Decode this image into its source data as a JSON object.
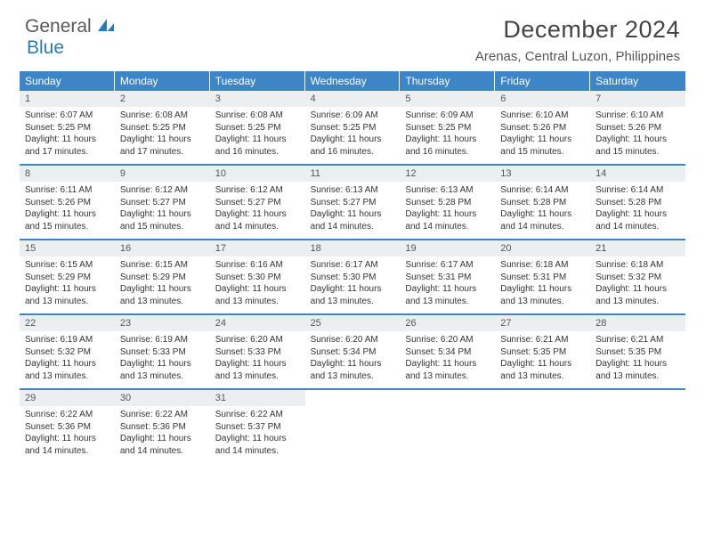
{
  "logo": {
    "text1": "General",
    "text2": "Blue"
  },
  "title": "December 2024",
  "location": "Arenas, Central Luzon, Philippines",
  "colors": {
    "header_bg": "#3d85c6",
    "header_text": "#ffffff",
    "daynum_bg": "#eceff1",
    "week_border": "#3d85c6",
    "logo_gray": "#595959",
    "logo_blue": "#2a7ab8"
  },
  "day_names": [
    "Sunday",
    "Monday",
    "Tuesday",
    "Wednesday",
    "Thursday",
    "Friday",
    "Saturday"
  ],
  "weeks": [
    [
      {
        "n": "1",
        "sr": "6:07 AM",
        "ss": "5:25 PM",
        "dh": "11",
        "dm": "17"
      },
      {
        "n": "2",
        "sr": "6:08 AM",
        "ss": "5:25 PM",
        "dh": "11",
        "dm": "17"
      },
      {
        "n": "3",
        "sr": "6:08 AM",
        "ss": "5:25 PM",
        "dh": "11",
        "dm": "16"
      },
      {
        "n": "4",
        "sr": "6:09 AM",
        "ss": "5:25 PM",
        "dh": "11",
        "dm": "16"
      },
      {
        "n": "5",
        "sr": "6:09 AM",
        "ss": "5:25 PM",
        "dh": "11",
        "dm": "16"
      },
      {
        "n": "6",
        "sr": "6:10 AM",
        "ss": "5:26 PM",
        "dh": "11",
        "dm": "15"
      },
      {
        "n": "7",
        "sr": "6:10 AM",
        "ss": "5:26 PM",
        "dh": "11",
        "dm": "15"
      }
    ],
    [
      {
        "n": "8",
        "sr": "6:11 AM",
        "ss": "5:26 PM",
        "dh": "11",
        "dm": "15"
      },
      {
        "n": "9",
        "sr": "6:12 AM",
        "ss": "5:27 PM",
        "dh": "11",
        "dm": "15"
      },
      {
        "n": "10",
        "sr": "6:12 AM",
        "ss": "5:27 PM",
        "dh": "11",
        "dm": "14"
      },
      {
        "n": "11",
        "sr": "6:13 AM",
        "ss": "5:27 PM",
        "dh": "11",
        "dm": "14"
      },
      {
        "n": "12",
        "sr": "6:13 AM",
        "ss": "5:28 PM",
        "dh": "11",
        "dm": "14"
      },
      {
        "n": "13",
        "sr": "6:14 AM",
        "ss": "5:28 PM",
        "dh": "11",
        "dm": "14"
      },
      {
        "n": "14",
        "sr": "6:14 AM",
        "ss": "5:28 PM",
        "dh": "11",
        "dm": "14"
      }
    ],
    [
      {
        "n": "15",
        "sr": "6:15 AM",
        "ss": "5:29 PM",
        "dh": "11",
        "dm": "13"
      },
      {
        "n": "16",
        "sr": "6:15 AM",
        "ss": "5:29 PM",
        "dh": "11",
        "dm": "13"
      },
      {
        "n": "17",
        "sr": "6:16 AM",
        "ss": "5:30 PM",
        "dh": "11",
        "dm": "13"
      },
      {
        "n": "18",
        "sr": "6:17 AM",
        "ss": "5:30 PM",
        "dh": "11",
        "dm": "13"
      },
      {
        "n": "19",
        "sr": "6:17 AM",
        "ss": "5:31 PM",
        "dh": "11",
        "dm": "13"
      },
      {
        "n": "20",
        "sr": "6:18 AM",
        "ss": "5:31 PM",
        "dh": "11",
        "dm": "13"
      },
      {
        "n": "21",
        "sr": "6:18 AM",
        "ss": "5:32 PM",
        "dh": "11",
        "dm": "13"
      }
    ],
    [
      {
        "n": "22",
        "sr": "6:19 AM",
        "ss": "5:32 PM",
        "dh": "11",
        "dm": "13"
      },
      {
        "n": "23",
        "sr": "6:19 AM",
        "ss": "5:33 PM",
        "dh": "11",
        "dm": "13"
      },
      {
        "n": "24",
        "sr": "6:20 AM",
        "ss": "5:33 PM",
        "dh": "11",
        "dm": "13"
      },
      {
        "n": "25",
        "sr": "6:20 AM",
        "ss": "5:34 PM",
        "dh": "11",
        "dm": "13"
      },
      {
        "n": "26",
        "sr": "6:20 AM",
        "ss": "5:34 PM",
        "dh": "11",
        "dm": "13"
      },
      {
        "n": "27",
        "sr": "6:21 AM",
        "ss": "5:35 PM",
        "dh": "11",
        "dm": "13"
      },
      {
        "n": "28",
        "sr": "6:21 AM",
        "ss": "5:35 PM",
        "dh": "11",
        "dm": "13"
      }
    ],
    [
      {
        "n": "29",
        "sr": "6:22 AM",
        "ss": "5:36 PM",
        "dh": "11",
        "dm": "14"
      },
      {
        "n": "30",
        "sr": "6:22 AM",
        "ss": "5:36 PM",
        "dh": "11",
        "dm": "14"
      },
      {
        "n": "31",
        "sr": "6:22 AM",
        "ss": "5:37 PM",
        "dh": "11",
        "dm": "14"
      },
      null,
      null,
      null,
      null
    ]
  ],
  "labels": {
    "sunrise": "Sunrise:",
    "sunset": "Sunset:",
    "daylight_pre": "Daylight:",
    "hours": "hours",
    "and": "and",
    "minutes": "minutes."
  }
}
